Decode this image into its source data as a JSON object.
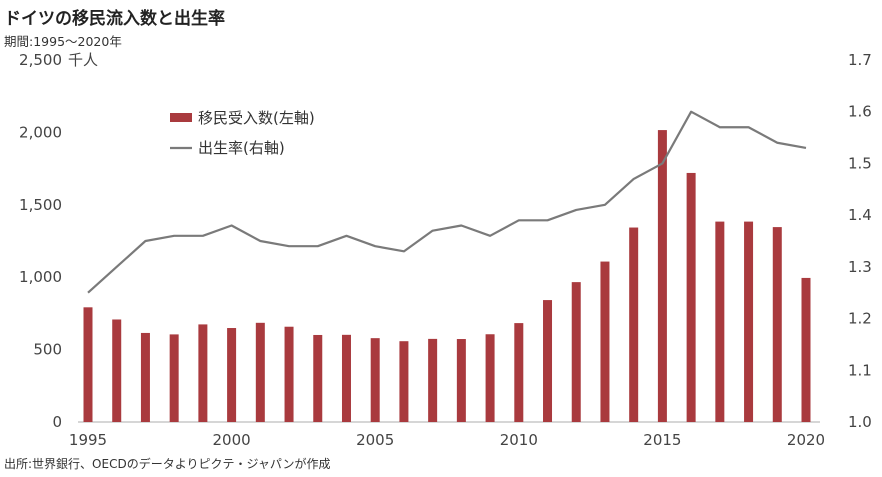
{
  "title": "ドイツの移民流入数と出生率",
  "subtitle": "期間:1995～2020年",
  "source": "出所:世界銀行、OECDのデータよりピクテ・ジャパンが作成",
  "left_axis_unit": "千人",
  "colors": {
    "bar": "#a93a3e",
    "line": "#7a7a7a",
    "axis": "#c8c8c8"
  },
  "chart_data": {
    "type": "bar+line",
    "x": [
      1995,
      1996,
      1997,
      1998,
      1999,
      2000,
      2001,
      2002,
      2003,
      2004,
      2005,
      2006,
      2007,
      2008,
      2009,
      2010,
      2011,
      2012,
      2013,
      2014,
      2015,
      2016,
      2017,
      2018,
      2019,
      2020
    ],
    "series": [
      {
        "name": "移民受入数(左軸)",
        "type": "bar",
        "axis": "left",
        "values": [
          792,
          708,
          615,
          605,
          674,
          649,
          685,
          658,
          601,
          602,
          579,
          558,
          574,
          573,
          606,
          683,
          842,
          966,
          1108,
          1343,
          2016,
          1720,
          1384,
          1384,
          1346,
          995
        ]
      },
      {
        "name": "出生率(右軸)",
        "type": "line",
        "axis": "right",
        "values": [
          1.25,
          1.3,
          1.35,
          1.36,
          1.36,
          1.38,
          1.35,
          1.34,
          1.34,
          1.36,
          1.34,
          1.33,
          1.37,
          1.38,
          1.36,
          1.39,
          1.39,
          1.41,
          1.42,
          1.47,
          1.5,
          1.6,
          1.57,
          1.57,
          1.54,
          1.53
        ]
      }
    ],
    "x_ticks": [
      1995,
      2000,
      2005,
      2010,
      2015,
      2020
    ],
    "y_left": {
      "lim": [
        0,
        2500
      ],
      "ticks": [
        "0",
        "500",
        "1,000",
        "1,500",
        "2,000",
        "2,500"
      ],
      "tick_values": [
        0,
        500,
        1000,
        1500,
        2000,
        2500
      ]
    },
    "y_right": {
      "lim": [
        1.0,
        1.7
      ],
      "ticks": [
        "1.0",
        "1.1",
        "1.2",
        "1.3",
        "1.4",
        "1.5",
        "1.6",
        "1.7"
      ],
      "tick_values": [
        1.0,
        1.1,
        1.2,
        1.3,
        1.4,
        1.5,
        1.6,
        1.7
      ]
    },
    "grid": false,
    "legend_position": "upper-left"
  }
}
